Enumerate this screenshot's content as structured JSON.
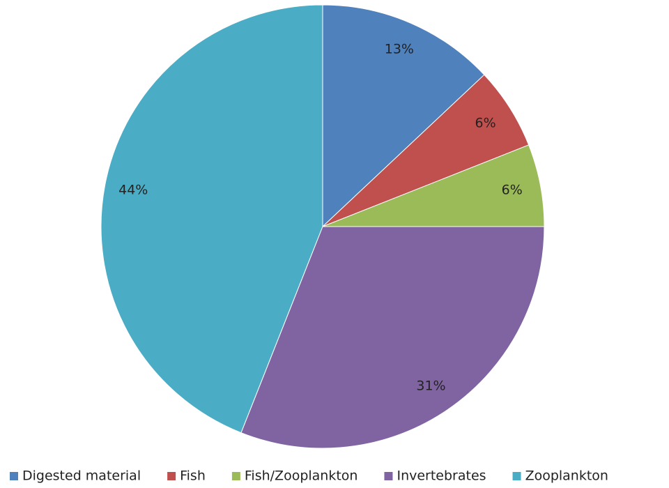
{
  "chart_data": {
    "type": "pie",
    "categories": [
      "Digested material",
      "Fish",
      "Fish/Zooplankton",
      "Invertebrates",
      "Zooplankton"
    ],
    "values": [
      13,
      6,
      6,
      31,
      44
    ],
    "value_labels": [
      "13%",
      "6%",
      "6%",
      "31%",
      "44%"
    ],
    "colors": [
      "#4f81bd",
      "#c0504d",
      "#9bbb59",
      "#8064a2",
      "#4bacc6"
    ],
    "legend": "bottom"
  }
}
